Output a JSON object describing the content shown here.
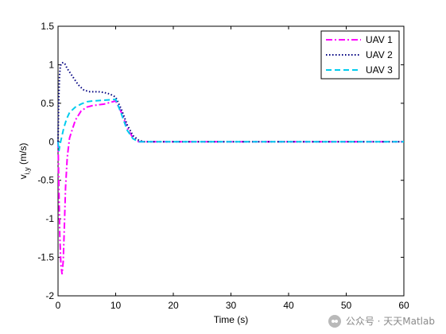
{
  "chart_data": {
    "type": "line",
    "title": "",
    "xlabel": "Time (s)",
    "ylabel": "v",
    "ylabel_sub": "i,y",
    "ylabel_unit": "(m/s)",
    "xlim": [
      0,
      60
    ],
    "ylim": [
      -2,
      1.5
    ],
    "xticks": [
      "0",
      "10",
      "20",
      "30",
      "40",
      "50",
      "60"
    ],
    "yticks": [
      "-2",
      "-1.5",
      "-1",
      "-0.5",
      "0",
      "0.5",
      "1",
      "1.5"
    ],
    "grid": false,
    "legend_position": "top-right",
    "series": [
      {
        "name": "UAV 1",
        "color": "#ff00ff",
        "style": "dashdot",
        "points": [
          [
            0,
            0
          ],
          [
            0.15,
            -0.6
          ],
          [
            0.3,
            -1.2
          ],
          [
            0.5,
            -1.6
          ],
          [
            0.7,
            -1.72
          ],
          [
            0.9,
            -1.55
          ],
          [
            1.1,
            -1.1
          ],
          [
            1.3,
            -0.6
          ],
          [
            1.6,
            -0.2
          ],
          [
            2,
            0.05
          ],
          [
            3,
            0.28
          ],
          [
            4,
            0.4
          ],
          [
            5,
            0.45
          ],
          [
            6,
            0.47
          ],
          [
            8,
            0.49
          ],
          [
            9.5,
            0.52
          ],
          [
            10,
            0.53
          ],
          [
            11,
            0.38
          ],
          [
            12,
            0.18
          ],
          [
            13,
            0.05
          ],
          [
            14,
            0
          ],
          [
            20,
            0
          ],
          [
            30,
            0
          ],
          [
            40,
            0
          ],
          [
            50,
            0
          ],
          [
            60,
            0
          ]
        ]
      },
      {
        "name": "UAV 2",
        "color": "#000080",
        "style": "dotted",
        "points": [
          [
            0,
            0
          ],
          [
            0.1,
            0.45
          ],
          [
            0.25,
            0.85
          ],
          [
            0.4,
            0.98
          ],
          [
            0.6,
            1.02
          ],
          [
            0.9,
            1.03
          ],
          [
            1.2,
            1.01
          ],
          [
            1.6,
            0.95
          ],
          [
            2.5,
            0.85
          ],
          [
            3.5,
            0.74
          ],
          [
            4.5,
            0.67
          ],
          [
            5.5,
            0.65
          ],
          [
            7,
            0.65
          ],
          [
            8,
            0.64
          ],
          [
            9,
            0.62
          ],
          [
            10,
            0.58
          ],
          [
            11,
            0.42
          ],
          [
            12,
            0.22
          ],
          [
            13,
            0.08
          ],
          [
            14,
            0.02
          ],
          [
            15,
            0
          ],
          [
            20,
            0
          ],
          [
            30,
            0
          ],
          [
            40,
            0
          ],
          [
            50,
            0
          ],
          [
            60,
            0
          ]
        ]
      },
      {
        "name": "UAV 3",
        "color": "#00ccee",
        "style": "dashed",
        "points": [
          [
            0,
            0
          ],
          [
            0.15,
            -0.12
          ],
          [
            0.3,
            -0.05
          ],
          [
            0.6,
            0.05
          ],
          [
            1,
            0.18
          ],
          [
            1.5,
            0.3
          ],
          [
            2,
            0.38
          ],
          [
            3,
            0.45
          ],
          [
            4,
            0.49
          ],
          [
            5,
            0.52
          ],
          [
            6,
            0.53
          ],
          [
            7,
            0.535
          ],
          [
            8,
            0.54
          ],
          [
            9,
            0.545
          ],
          [
            10,
            0.55
          ],
          [
            11,
            0.36
          ],
          [
            12,
            0.15
          ],
          [
            13,
            0.04
          ],
          [
            14,
            0
          ],
          [
            20,
            0
          ],
          [
            30,
            0
          ],
          [
            40,
            0
          ],
          [
            50,
            0
          ],
          [
            60,
            0
          ]
        ]
      }
    ]
  },
  "watermark": {
    "text": "公众号 · 天天Matlab",
    "icon": "wechat-icon"
  }
}
